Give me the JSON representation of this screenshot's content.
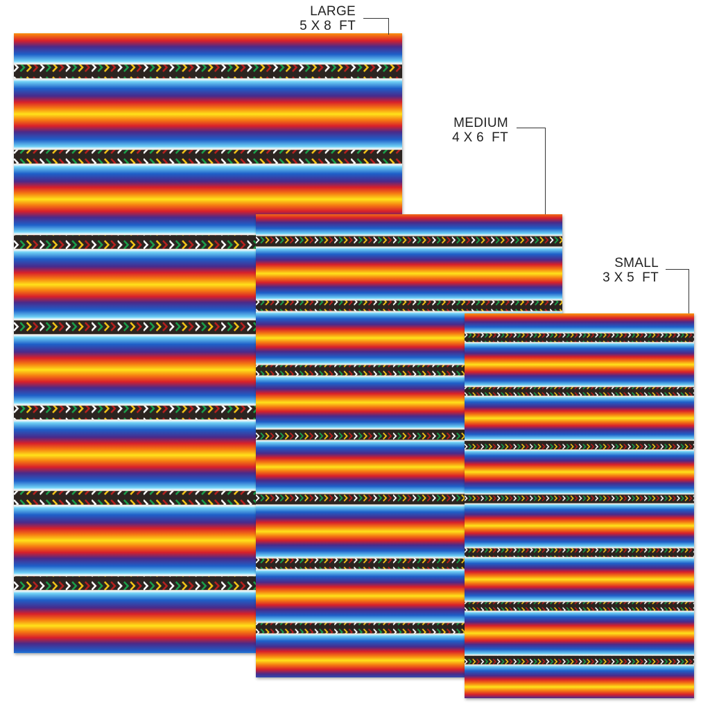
{
  "sizes": [
    {
      "name": "LARGE",
      "dimensions": "5 X 8  FT"
    },
    {
      "name": "MEDIUM",
      "dimensions": "4 X 6  FT"
    },
    {
      "name": "SMALL",
      "dimensions": "3 X 5  FT"
    }
  ],
  "pattern": {
    "stripe_colors": [
      "#ffffff",
      "#6fd0f5",
      "#1e5fc8",
      "#4a2a8a",
      "#d8202a",
      "#f57a12",
      "#ffe21a"
    ],
    "band_colors": [
      "#2b2420",
      "#ffffff",
      "#1aa04a",
      "#f5c516",
      "#b8201e"
    ]
  }
}
